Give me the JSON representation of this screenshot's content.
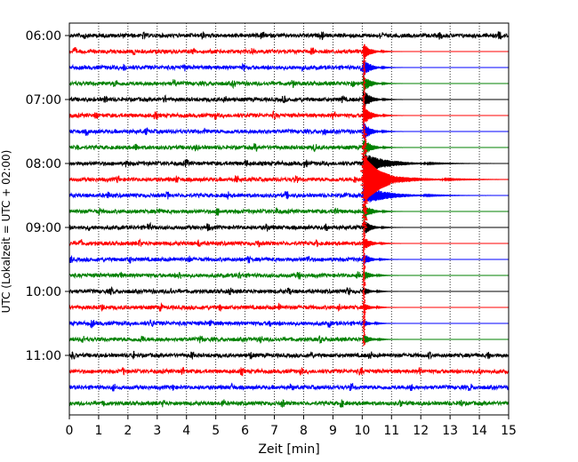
{
  "chart_data": {
    "type": "line",
    "chart_kind": "helicorder seismogram",
    "xlabel": "Zeit  [min]",
    "ylabel": "UTC (Lokalzeit = UTC + 02:00)",
    "xlim": [
      0,
      15
    ],
    "x_ticks": [
      0,
      1,
      2,
      3,
      4,
      5,
      6,
      7,
      8,
      9,
      10,
      11,
      12,
      13,
      14,
      15
    ],
    "x_tick_labels": [
      "0",
      "1",
      "2",
      "3",
      "4",
      "5",
      "6",
      "7",
      "8",
      "9",
      "10",
      "11",
      "12",
      "13",
      "14",
      "15"
    ],
    "y_tick_labels": [
      "06:00",
      "07:00",
      "08:00",
      "09:00",
      "10:00",
      "11:00"
    ],
    "y_tick_rows": [
      0,
      4,
      8,
      12,
      16,
      20
    ],
    "row_count": 24,
    "row_interval_min": 15,
    "row_colors": [
      "#000000",
      "#ff0000",
      "#0000ff",
      "#008000"
    ],
    "grid": "vertical dotted lines at each minute",
    "event": {
      "onset_row": 1,
      "end_row": 19,
      "onset_min": 10.05,
      "peak_row": 9,
      "color": "#ff0000"
    }
  }
}
